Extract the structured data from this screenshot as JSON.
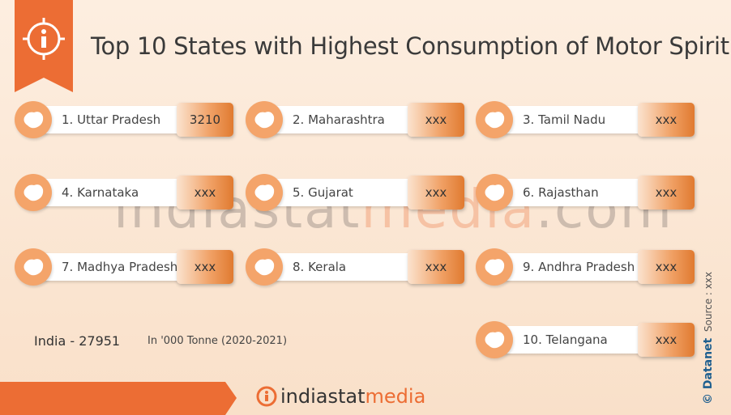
{
  "header": {
    "title": "Top 10 States with Highest Consumption of Motor Spirit"
  },
  "states": [
    {
      "label": "1. Uttar Pradesh",
      "value": "3210"
    },
    {
      "label": "2. Maharashtra",
      "value": "xxx"
    },
    {
      "label": "3. Tamil Nadu",
      "value": "xxx"
    },
    {
      "label": "4. Karnataka",
      "value": "xxx"
    },
    {
      "label": "5. Gujarat",
      "value": "xxx"
    },
    {
      "label": "6. Rajasthan",
      "value": "xxx"
    },
    {
      "label": "7. Madhya Pradesh",
      "value": "xxx"
    },
    {
      "label": "8. Kerala",
      "value": "xxx"
    },
    {
      "label": "9. Andhra Pradesh",
      "value": "xxx"
    },
    {
      "label": "10. Telangana",
      "value": "xxx"
    }
  ],
  "summary": {
    "total": "India - 27951",
    "unit": "In '000 Tonne (2020-2021)"
  },
  "side": {
    "copyright": "© Datanet",
    "source": "Source : xxx"
  },
  "watermark": {
    "part1": "indiastat",
    "part2": "media",
    "part3": ".com"
  },
  "footer": {
    "brand_part1": "indiastat",
    "brand_part2": "media"
  }
}
